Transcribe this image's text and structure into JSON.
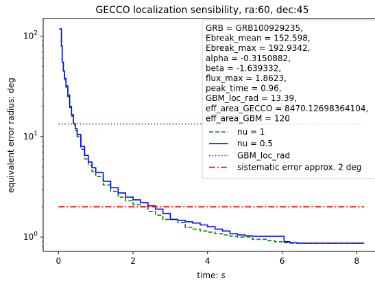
{
  "chart_data": {
    "type": "line",
    "title": "GECCO localization sensibility, ra:60, dec:45",
    "xlabel": "time: s",
    "ylabel": "equivalent error radius: deg",
    "xlim": [
      -0.41,
      8.6
    ],
    "ylim": [
      0.72,
      150
    ],
    "x_scale": "linear",
    "y_scale": "log",
    "grid": false,
    "x_ticks": [
      {
        "value": 0,
        "label": "0"
      },
      {
        "value": 2,
        "label": "2"
      },
      {
        "value": 4,
        "label": "4"
      },
      {
        "value": 6,
        "label": "6"
      },
      {
        "value": 8,
        "label": "8"
      }
    ],
    "y_ticks": [
      {
        "value": 1,
        "base": "10",
        "exp": "0"
      },
      {
        "value": 10,
        "base": "10",
        "exp": "1"
      },
      {
        "value": 100,
        "base": "10",
        "exp": "2"
      }
    ],
    "legend_position": "top-right",
    "info_lines": [
      "GRB = GRB100929235,",
      "Ebreak_mean = 152.598,",
      "Ebreak_max = 192.9342,",
      "alpha = -0.3150882,",
      "beta = -1.639332,",
      "flux_max = 1.8623,",
      "peak_time = 0.96,",
      "GBM_loc_rad = 13.39,",
      "eff_area_GECCO = 8470.12698364104,",
      "eff_area_GBM = 120"
    ],
    "series": [
      {
        "name": "nu = 1",
        "color": "#008000",
        "dash": "dashed",
        "x": [
          0.02,
          0.06,
          0.08,
          0.1,
          0.13,
          0.16,
          0.2,
          0.25,
          0.3,
          0.35,
          0.4,
          0.45,
          0.5,
          0.6,
          0.7,
          0.8,
          0.9,
          1.0,
          1.2,
          1.4,
          1.6,
          1.8,
          2.0,
          2.2,
          2.4,
          2.6,
          2.8,
          3.0,
          3.2,
          3.4,
          3.6,
          3.8,
          4.0,
          4.2,
          4.4,
          4.6,
          4.8,
          5.0,
          5.2,
          5.4,
          5.6,
          5.8,
          6.0,
          6.2,
          6.4,
          8.2
        ],
        "y": [
          118,
          118,
          80,
          55,
          45,
          37,
          31,
          25,
          19.5,
          16,
          13,
          11.5,
          10,
          7.5,
          6.0,
          5.2,
          4.5,
          4.0,
          3.3,
          2.85,
          2.5,
          2.3,
          2.1,
          2.0,
          1.8,
          1.65,
          1.5,
          1.5,
          1.4,
          1.25,
          1.2,
          1.15,
          1.12,
          1.08,
          1.05,
          1.02,
          1.0,
          1.0,
          0.95,
          0.95,
          0.92,
          0.9,
          0.88,
          0.87,
          0.87,
          0.87
        ]
      },
      {
        "name": "nu = 0.5",
        "color": "#0000ff",
        "dash": "solid",
        "x": [
          0.02,
          0.06,
          0.08,
          0.1,
          0.13,
          0.16,
          0.2,
          0.25,
          0.3,
          0.35,
          0.4,
          0.45,
          0.5,
          0.6,
          0.7,
          0.8,
          0.9,
          1.0,
          1.2,
          1.4,
          1.6,
          1.8,
          2.0,
          2.2,
          2.4,
          2.6,
          2.8,
          3.0,
          3.2,
          3.4,
          3.6,
          3.8,
          4.0,
          4.2,
          4.4,
          4.6,
          4.8,
          5.0,
          5.2,
          5.4,
          5.6,
          5.8,
          6.0,
          6.05,
          6.2,
          6.4,
          8.2
        ],
        "y": [
          118,
          118,
          80,
          55,
          45,
          38,
          32,
          26,
          20,
          16.5,
          13.5,
          12,
          10.5,
          8.0,
          6.5,
          5.6,
          4.9,
          4.4,
          3.6,
          3.1,
          2.75,
          2.5,
          2.35,
          2.2,
          2.05,
          1.9,
          1.72,
          1.5,
          1.47,
          1.42,
          1.38,
          1.32,
          1.27,
          1.2,
          1.15,
          1.08,
          1.05,
          1.03,
          1.02,
          1.02,
          1.02,
          1.02,
          1.02,
          0.9,
          0.88,
          0.87,
          0.87
        ]
      },
      {
        "name": "GBM_loc_rad",
        "color": "#800080",
        "dash": "dotted",
        "x": [
          0.0,
          8.2
        ],
        "y": [
          13.39,
          13.39
        ]
      },
      {
        "name": "sistematic error approx. 2 deg",
        "color": "#ff0000",
        "dash": "dashdot",
        "x": [
          0.0,
          8.2
        ],
        "y": [
          2.0,
          2.0
        ]
      }
    ]
  }
}
